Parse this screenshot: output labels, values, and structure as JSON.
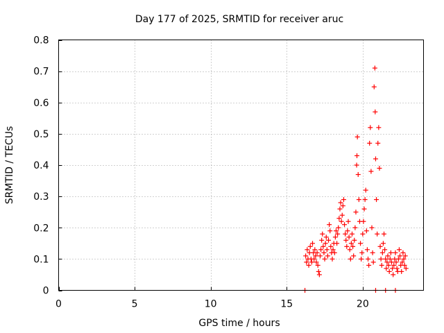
{
  "chart_data": {
    "type": "scatter",
    "title": "Day 177 of 2025, SRMTID for receiver aruc",
    "xlabel": "GPS time / hours",
    "ylabel": "SRMTID / TECUs",
    "xlim": [
      0,
      24
    ],
    "ylim": [
      0,
      0.8
    ],
    "x_ticks": [
      0,
      5,
      10,
      15,
      20
    ],
    "x_tick_labels": [
      "0",
      "5",
      "10",
      "15",
      "20"
    ],
    "y_ticks": [
      0,
      0.1,
      0.2,
      0.3,
      0.4,
      0.5,
      0.6,
      0.7,
      0.8
    ],
    "y_tick_labels": [
      "0",
      "0.1",
      "0.2",
      "0.3",
      "0.4",
      "0.5",
      "0.6",
      "0.7",
      "0.8"
    ],
    "grid": true,
    "marker": "+",
    "color": "#ff0000",
    "series": [
      {
        "name": "SRMTID",
        "points": [
          [
            16.2,
            0.0
          ],
          [
            16.25,
            0.11
          ],
          [
            16.3,
            0.09
          ],
          [
            16.35,
            0.13
          ],
          [
            16.4,
            0.1
          ],
          [
            16.45,
            0.08
          ],
          [
            16.5,
            0.12
          ],
          [
            16.55,
            0.14
          ],
          [
            16.6,
            0.1
          ],
          [
            16.65,
            0.09
          ],
          [
            16.7,
            0.15
          ],
          [
            16.75,
            0.12
          ],
          [
            16.8,
            0.1
          ],
          [
            16.85,
            0.13
          ],
          [
            16.9,
            0.11
          ],
          [
            16.95,
            0.09
          ],
          [
            17.0,
            0.12
          ],
          [
            17.05,
            0.08
          ],
          [
            17.1,
            0.06
          ],
          [
            17.15,
            0.05
          ],
          [
            17.2,
            0.11
          ],
          [
            17.25,
            0.13
          ],
          [
            17.3,
            0.16
          ],
          [
            17.35,
            0.18
          ],
          [
            17.4,
            0.14
          ],
          [
            17.45,
            0.12
          ],
          [
            17.5,
            0.1
          ],
          [
            17.55,
            0.15
          ],
          [
            17.6,
            0.17
          ],
          [
            17.65,
            0.13
          ],
          [
            17.7,
            0.11
          ],
          [
            17.75,
            0.16
          ],
          [
            17.8,
            0.21
          ],
          [
            17.85,
            0.19
          ],
          [
            17.9,
            0.14
          ],
          [
            17.95,
            0.12
          ],
          [
            18.0,
            0.1
          ],
          [
            18.05,
            0.13
          ],
          [
            18.1,
            0.15
          ],
          [
            18.15,
            0.12
          ],
          [
            18.2,
            0.17
          ],
          [
            18.25,
            0.19
          ],
          [
            18.3,
            0.15
          ],
          [
            18.35,
            0.18
          ],
          [
            18.4,
            0.2
          ],
          [
            18.45,
            0.23
          ],
          [
            18.5,
            0.26
          ],
          [
            18.55,
            0.28
          ],
          [
            18.6,
            0.22
          ],
          [
            18.65,
            0.24
          ],
          [
            18.7,
            0.27
          ],
          [
            18.75,
            0.29
          ],
          [
            18.8,
            0.21
          ],
          [
            18.85,
            0.18
          ],
          [
            18.9,
            0.16
          ],
          [
            18.95,
            0.14
          ],
          [
            19.0,
            0.19
          ],
          [
            19.05,
            0.22
          ],
          [
            19.1,
            0.17
          ],
          [
            19.15,
            0.13
          ],
          [
            19.2,
            0.1
          ],
          [
            19.25,
            0.15
          ],
          [
            19.3,
            0.18
          ],
          [
            19.35,
            0.14
          ],
          [
            19.4,
            0.11
          ],
          [
            19.45,
            0.16
          ],
          [
            19.5,
            0.2
          ],
          [
            19.55,
            0.25
          ],
          [
            19.6,
            0.4
          ],
          [
            19.62,
            0.43
          ],
          [
            19.65,
            0.49
          ],
          [
            19.7,
            0.37
          ],
          [
            19.75,
            0.29
          ],
          [
            19.8,
            0.22
          ],
          [
            19.85,
            0.15
          ],
          [
            19.9,
            0.1
          ],
          [
            19.95,
            0.12
          ],
          [
            20.0,
            0.18
          ],
          [
            20.05,
            0.22
          ],
          [
            20.1,
            0.26
          ],
          [
            20.15,
            0.29
          ],
          [
            20.2,
            0.32
          ],
          [
            20.25,
            0.19
          ],
          [
            20.3,
            0.13
          ],
          [
            20.35,
            0.1
          ],
          [
            20.4,
            0.08
          ],
          [
            20.45,
            0.47
          ],
          [
            20.5,
            0.52
          ],
          [
            20.55,
            0.38
          ],
          [
            20.6,
            0.2
          ],
          [
            20.65,
            0.12
          ],
          [
            20.7,
            0.09
          ],
          [
            20.75,
            0.65
          ],
          [
            20.8,
            0.71
          ],
          [
            20.82,
            0.57
          ],
          [
            20.85,
            0.42
          ],
          [
            20.9,
            0.29
          ],
          [
            20.95,
            0.18
          ],
          [
            21.0,
            0.47
          ],
          [
            21.05,
            0.52
          ],
          [
            21.1,
            0.39
          ],
          [
            21.15,
            0.14
          ],
          [
            21.2,
            0.1
          ],
          [
            21.25,
            0.08
          ],
          [
            21.3,
            0.12
          ],
          [
            21.35,
            0.15
          ],
          [
            21.4,
            0.18
          ],
          [
            21.45,
            0.13
          ],
          [
            21.5,
            0.1
          ],
          [
            21.55,
            0.07
          ],
          [
            21.6,
            0.09
          ],
          [
            21.65,
            0.11
          ],
          [
            21.7,
            0.08
          ],
          [
            21.75,
            0.06
          ],
          [
            21.8,
            0.1
          ],
          [
            21.85,
            0.12
          ],
          [
            21.9,
            0.09
          ],
          [
            21.95,
            0.07
          ],
          [
            22.0,
            0.05
          ],
          [
            22.05,
            0.08
          ],
          [
            22.1,
            0.1
          ],
          [
            22.15,
            0.12
          ],
          [
            22.2,
            0.09
          ],
          [
            22.25,
            0.07
          ],
          [
            22.3,
            0.06
          ],
          [
            22.35,
            0.1
          ],
          [
            22.4,
            0.13
          ],
          [
            22.45,
            0.11
          ],
          [
            22.5,
            0.08
          ],
          [
            22.55,
            0.06
          ],
          [
            22.6,
            0.09
          ],
          [
            22.65,
            0.12
          ],
          [
            22.7,
            0.1
          ],
          [
            22.75,
            0.08
          ],
          [
            22.8,
            0.11
          ],
          [
            22.85,
            0.07
          ],
          [
            20.85,
            0.0
          ],
          [
            21.5,
            0.0
          ],
          [
            22.15,
            0.0
          ]
        ]
      }
    ]
  }
}
